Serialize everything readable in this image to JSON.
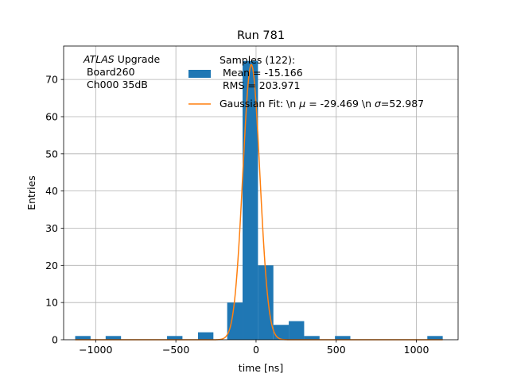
{
  "chart_data": {
    "type": "bar",
    "title": "Run 781",
    "xlabel": "time [ns]",
    "ylabel": "Entries",
    "xlim": [
      -1200,
      1260
    ],
    "ylim": [
      0,
      79
    ],
    "grid": true,
    "x_ticks": [
      -1000,
      -500,
      0,
      500,
      1000
    ],
    "x_tick_labels": [
      "−1000",
      "−500",
      "0",
      "500",
      "1000"
    ],
    "y_ticks": [
      0,
      10,
      20,
      30,
      40,
      50,
      60,
      70
    ],
    "y_tick_labels": [
      "0",
      "10",
      "20",
      "30",
      "40",
      "50",
      "60",
      "70"
    ],
    "annotation": {
      "line1_italic": "ATLAS",
      "line1_rest": " Upgrade",
      "line2": " Board260",
      "line3": " Ch000 35dB"
    },
    "legend": {
      "placement": "top-right",
      "hist_label_lines": [
        "Samples (122):",
        " Mean = -15.166",
        " RMS = 203.971"
      ],
      "fit_label_parts": [
        "Gaussian Fit: \\n ",
        "μ",
        " = -29.469 \\n ",
        "σ",
        "=52.987"
      ]
    },
    "series": [
      {
        "name": "Samples (122):",
        "kind": "histogram",
        "color": "#1f77b4",
        "bin_width": 96,
        "bins": [
          {
            "left": -1128,
            "count": 1
          },
          {
            "left": -938,
            "count": 1
          },
          {
            "left": -555,
            "count": 1
          },
          {
            "left": -362,
            "count": 2
          },
          {
            "left": -180,
            "count": 10
          },
          {
            "left": -84,
            "count": 75
          },
          {
            "left": 12,
            "count": 20
          },
          {
            "left": 108,
            "count": 4
          },
          {
            "left": 204,
            "count": 5
          },
          {
            "left": 300,
            "count": 1
          },
          {
            "left": 492,
            "count": 1
          },
          {
            "left": 1068,
            "count": 1
          }
        ]
      },
      {
        "name": "Gaussian Fit: \\n μ = -29.469 \\n σ=52.987",
        "kind": "gaussian",
        "color": "#ff7f0e",
        "amplitude": 74,
        "mu": -29.469,
        "sigma": 52.987,
        "x_range": [
          -1128,
          1164
        ]
      }
    ]
  }
}
